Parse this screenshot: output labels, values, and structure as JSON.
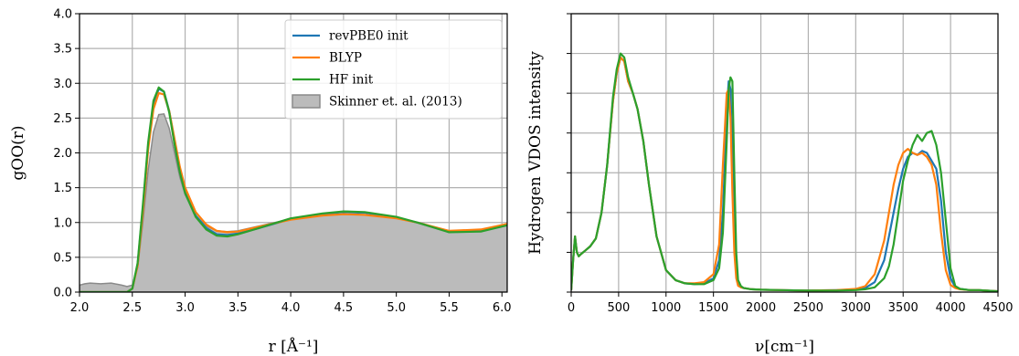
{
  "chart_data": [
    {
      "type": "line",
      "xlabel": "r [Å⁻¹]",
      "ylabel": "gOO(r)",
      "xlim": [
        2.0,
        6.05
      ],
      "ylim": [
        0.0,
        4.0
      ],
      "xticks": [
        "2.0",
        "2.5",
        "3.0",
        "3.5",
        "4.0",
        "4.5",
        "5.0",
        "5.5",
        "6.0"
      ],
      "yticks": [
        "0.0",
        "0.5",
        "1.0",
        "1.5",
        "2.0",
        "2.5",
        "3.0",
        "3.5",
        "4.0"
      ],
      "grid": true,
      "legend_position": "top-right",
      "series": [
        {
          "name": "revPBE0 init",
          "color": "#1f77b4",
          "x": [
            2.0,
            2.4,
            2.45,
            2.5,
            2.55,
            2.6,
            2.65,
            2.7,
            2.75,
            2.8,
            2.85,
            2.9,
            2.95,
            3.0,
            3.1,
            3.2,
            3.3,
            3.4,
            3.5,
            3.7,
            4.0,
            4.3,
            4.5,
            4.7,
            5.0,
            5.2,
            5.5,
            5.8,
            6.05
          ],
          "y": [
            0.0,
            0.0,
            0.0,
            0.05,
            0.4,
            1.2,
            2.1,
            2.7,
            2.92,
            2.88,
            2.6,
            2.15,
            1.75,
            1.45,
            1.1,
            0.92,
            0.83,
            0.82,
            0.84,
            0.92,
            1.05,
            1.12,
            1.15,
            1.14,
            1.07,
            1.0,
            0.87,
            0.88,
            0.96
          ]
        },
        {
          "name": "BLYP",
          "color": "#ff7f0e",
          "x": [
            2.0,
            2.4,
            2.45,
            2.5,
            2.55,
            2.6,
            2.65,
            2.7,
            2.75,
            2.8,
            2.85,
            2.9,
            2.95,
            3.0,
            3.1,
            3.2,
            3.3,
            3.4,
            3.5,
            3.7,
            4.0,
            4.3,
            4.5,
            4.7,
            5.0,
            5.2,
            5.5,
            5.8,
            6.05
          ],
          "y": [
            0.0,
            0.0,
            0.0,
            0.05,
            0.38,
            1.15,
            2.05,
            2.63,
            2.86,
            2.84,
            2.6,
            2.2,
            1.8,
            1.5,
            1.15,
            0.97,
            0.88,
            0.86,
            0.87,
            0.94,
            1.04,
            1.1,
            1.12,
            1.11,
            1.06,
            1.0,
            0.88,
            0.9,
            0.98
          ]
        },
        {
          "name": "HF init",
          "color": "#2ca02c",
          "x": [
            2.0,
            2.4,
            2.45,
            2.5,
            2.55,
            2.6,
            2.65,
            2.7,
            2.75,
            2.8,
            2.85,
            2.9,
            2.95,
            3.0,
            3.1,
            3.2,
            3.3,
            3.4,
            3.5,
            3.7,
            4.0,
            4.3,
            4.5,
            4.7,
            5.0,
            5.2,
            5.5,
            5.8,
            6.05
          ],
          "y": [
            0.0,
            0.0,
            0.0,
            0.05,
            0.42,
            1.25,
            2.15,
            2.75,
            2.94,
            2.88,
            2.58,
            2.12,
            1.72,
            1.42,
            1.08,
            0.9,
            0.81,
            0.8,
            0.83,
            0.92,
            1.06,
            1.13,
            1.16,
            1.15,
            1.08,
            1.0,
            0.86,
            0.87,
            0.96
          ]
        },
        {
          "name": "Skinner et. al. (2013)",
          "color": "#bbbbbb",
          "kind": "area",
          "x": [
            2.0,
            2.05,
            2.1,
            2.2,
            2.3,
            2.4,
            2.45,
            2.5,
            2.55,
            2.6,
            2.65,
            2.7,
            2.75,
            2.8,
            2.85,
            2.9,
            2.95,
            3.0,
            3.1,
            3.2,
            3.3,
            3.4,
            3.5,
            3.7,
            4.0,
            4.3,
            4.5,
            4.7,
            5.0,
            5.2,
            5.5,
            5.8,
            6.05
          ],
          "y": [
            0.1,
            0.12,
            0.13,
            0.12,
            0.13,
            0.1,
            0.08,
            0.1,
            0.35,
            1.0,
            1.75,
            2.3,
            2.55,
            2.56,
            2.35,
            2.0,
            1.65,
            1.4,
            1.1,
            0.95,
            0.88,
            0.87,
            0.88,
            0.95,
            1.05,
            1.1,
            1.12,
            1.11,
            1.06,
            1.0,
            0.88,
            0.89,
            0.97
          ]
        }
      ]
    },
    {
      "type": "line",
      "xlabel": "ν[cm⁻¹]",
      "ylabel": "Hydrogen VDOS intensity",
      "xlim": [
        0,
        4500
      ],
      "xticks": [
        "0",
        "500",
        "1000",
        "1500",
        "2000",
        "2500",
        "3000",
        "3500",
        "4000",
        "4500"
      ],
      "grid": true,
      "series": [
        {
          "color": "#1f77b4",
          "x": [
            0,
            20,
            40,
            60,
            80,
            100,
            150,
            200,
            260,
            320,
            380,
            440,
            480,
            520,
            560,
            600,
            650,
            700,
            760,
            820,
            900,
            1000,
            1100,
            1200,
            1300,
            1400,
            1500,
            1560,
            1600,
            1640,
            1660,
            1680,
            1700,
            1720,
            1740,
            1760,
            1790,
            1820,
            1900,
            2000,
            2200,
            2500,
            2800,
            3000,
            3100,
            3200,
            3300,
            3350,
            3400,
            3450,
            3500,
            3550,
            3600,
            3650,
            3700,
            3750,
            3800,
            3850,
            3900,
            3950,
            4000,
            4050,
            4100,
            4200,
            4300,
            4500
          ],
          "y": [
            0.05,
            0.8,
            1.4,
            1.0,
            0.9,
            0.95,
            1.05,
            1.15,
            1.35,
            2.0,
            3.2,
            4.8,
            5.5,
            5.9,
            5.8,
            5.3,
            5.0,
            4.6,
            3.8,
            2.7,
            1.4,
            0.55,
            0.3,
            0.22,
            0.2,
            0.22,
            0.35,
            0.8,
            2.0,
            4.5,
            5.3,
            5.1,
            3.5,
            1.5,
            0.5,
            0.2,
            0.12,
            0.1,
            0.07,
            0.06,
            0.05,
            0.04,
            0.05,
            0.06,
            0.1,
            0.25,
            0.8,
            1.4,
            2.0,
            2.6,
            3.1,
            3.4,
            3.5,
            3.45,
            3.55,
            3.5,
            3.3,
            3.1,
            2.3,
            1.0,
            0.35,
            0.12,
            0.08,
            0.05,
            0.05,
            0.02
          ]
        },
        {
          "color": "#ff7f0e",
          "x": [
            0,
            20,
            40,
            60,
            80,
            100,
            150,
            200,
            260,
            320,
            380,
            440,
            480,
            520,
            560,
            600,
            650,
            700,
            760,
            820,
            900,
            1000,
            1100,
            1200,
            1300,
            1400,
            1500,
            1560,
            1600,
            1640,
            1660,
            1680,
            1700,
            1720,
            1740,
            1760,
            1790,
            1820,
            1900,
            2000,
            2200,
            2500,
            2800,
            3000,
            3100,
            3200,
            3300,
            3350,
            3400,
            3450,
            3500,
            3550,
            3600,
            3650,
            3700,
            3750,
            3800,
            3850,
            3900,
            3950,
            4000,
            4050,
            4100,
            4200,
            4300,
            4500
          ],
          "y": [
            0.05,
            0.8,
            1.4,
            1.0,
            0.9,
            0.95,
            1.05,
            1.15,
            1.35,
            2.0,
            3.2,
            4.8,
            5.5,
            5.9,
            5.8,
            5.3,
            5.0,
            4.6,
            3.8,
            2.7,
            1.4,
            0.55,
            0.3,
            0.22,
            0.22,
            0.25,
            0.45,
            1.2,
            3.2,
            5.0,
            5.1,
            4.4,
            2.5,
            1.0,
            0.35,
            0.16,
            0.12,
            0.1,
            0.07,
            0.06,
            0.05,
            0.04,
            0.05,
            0.08,
            0.15,
            0.45,
            1.3,
            2.0,
            2.7,
            3.2,
            3.5,
            3.6,
            3.5,
            3.45,
            3.5,
            3.4,
            3.2,
            2.7,
            1.5,
            0.55,
            0.18,
            0.1,
            0.07,
            0.05,
            0.05,
            0.02
          ]
        },
        {
          "color": "#2ca02c",
          "x": [
            0,
            20,
            40,
            60,
            80,
            100,
            150,
            200,
            260,
            320,
            380,
            440,
            480,
            520,
            560,
            600,
            650,
            700,
            760,
            820,
            900,
            1000,
            1100,
            1200,
            1300,
            1400,
            1500,
            1560,
            1600,
            1640,
            1660,
            1680,
            1700,
            1720,
            1740,
            1760,
            1790,
            1820,
            1900,
            2000,
            2200,
            2500,
            2800,
            3000,
            3100,
            3200,
            3300,
            3350,
            3400,
            3450,
            3500,
            3550,
            3600,
            3650,
            3700,
            3750,
            3800,
            3850,
            3900,
            3950,
            4000,
            4050,
            4100,
            4200,
            4300,
            4500
          ],
          "y": [
            0.05,
            0.8,
            1.4,
            1.0,
            0.9,
            0.95,
            1.05,
            1.15,
            1.35,
            2.0,
            3.2,
            4.9,
            5.6,
            6.0,
            5.9,
            5.4,
            5.0,
            4.6,
            3.8,
            2.7,
            1.4,
            0.55,
            0.3,
            0.22,
            0.2,
            0.2,
            0.3,
            0.6,
            1.5,
            3.8,
            5.1,
            5.4,
            5.3,
            3.0,
            1.0,
            0.3,
            0.15,
            0.1,
            0.07,
            0.06,
            0.05,
            0.04,
            0.04,
            0.05,
            0.07,
            0.12,
            0.35,
            0.65,
            1.2,
            2.0,
            2.8,
            3.3,
            3.7,
            3.95,
            3.8,
            4.0,
            4.05,
            3.7,
            3.0,
            1.8,
            0.6,
            0.15,
            0.08,
            0.05,
            0.05,
            0.02
          ]
        }
      ]
    }
  ]
}
